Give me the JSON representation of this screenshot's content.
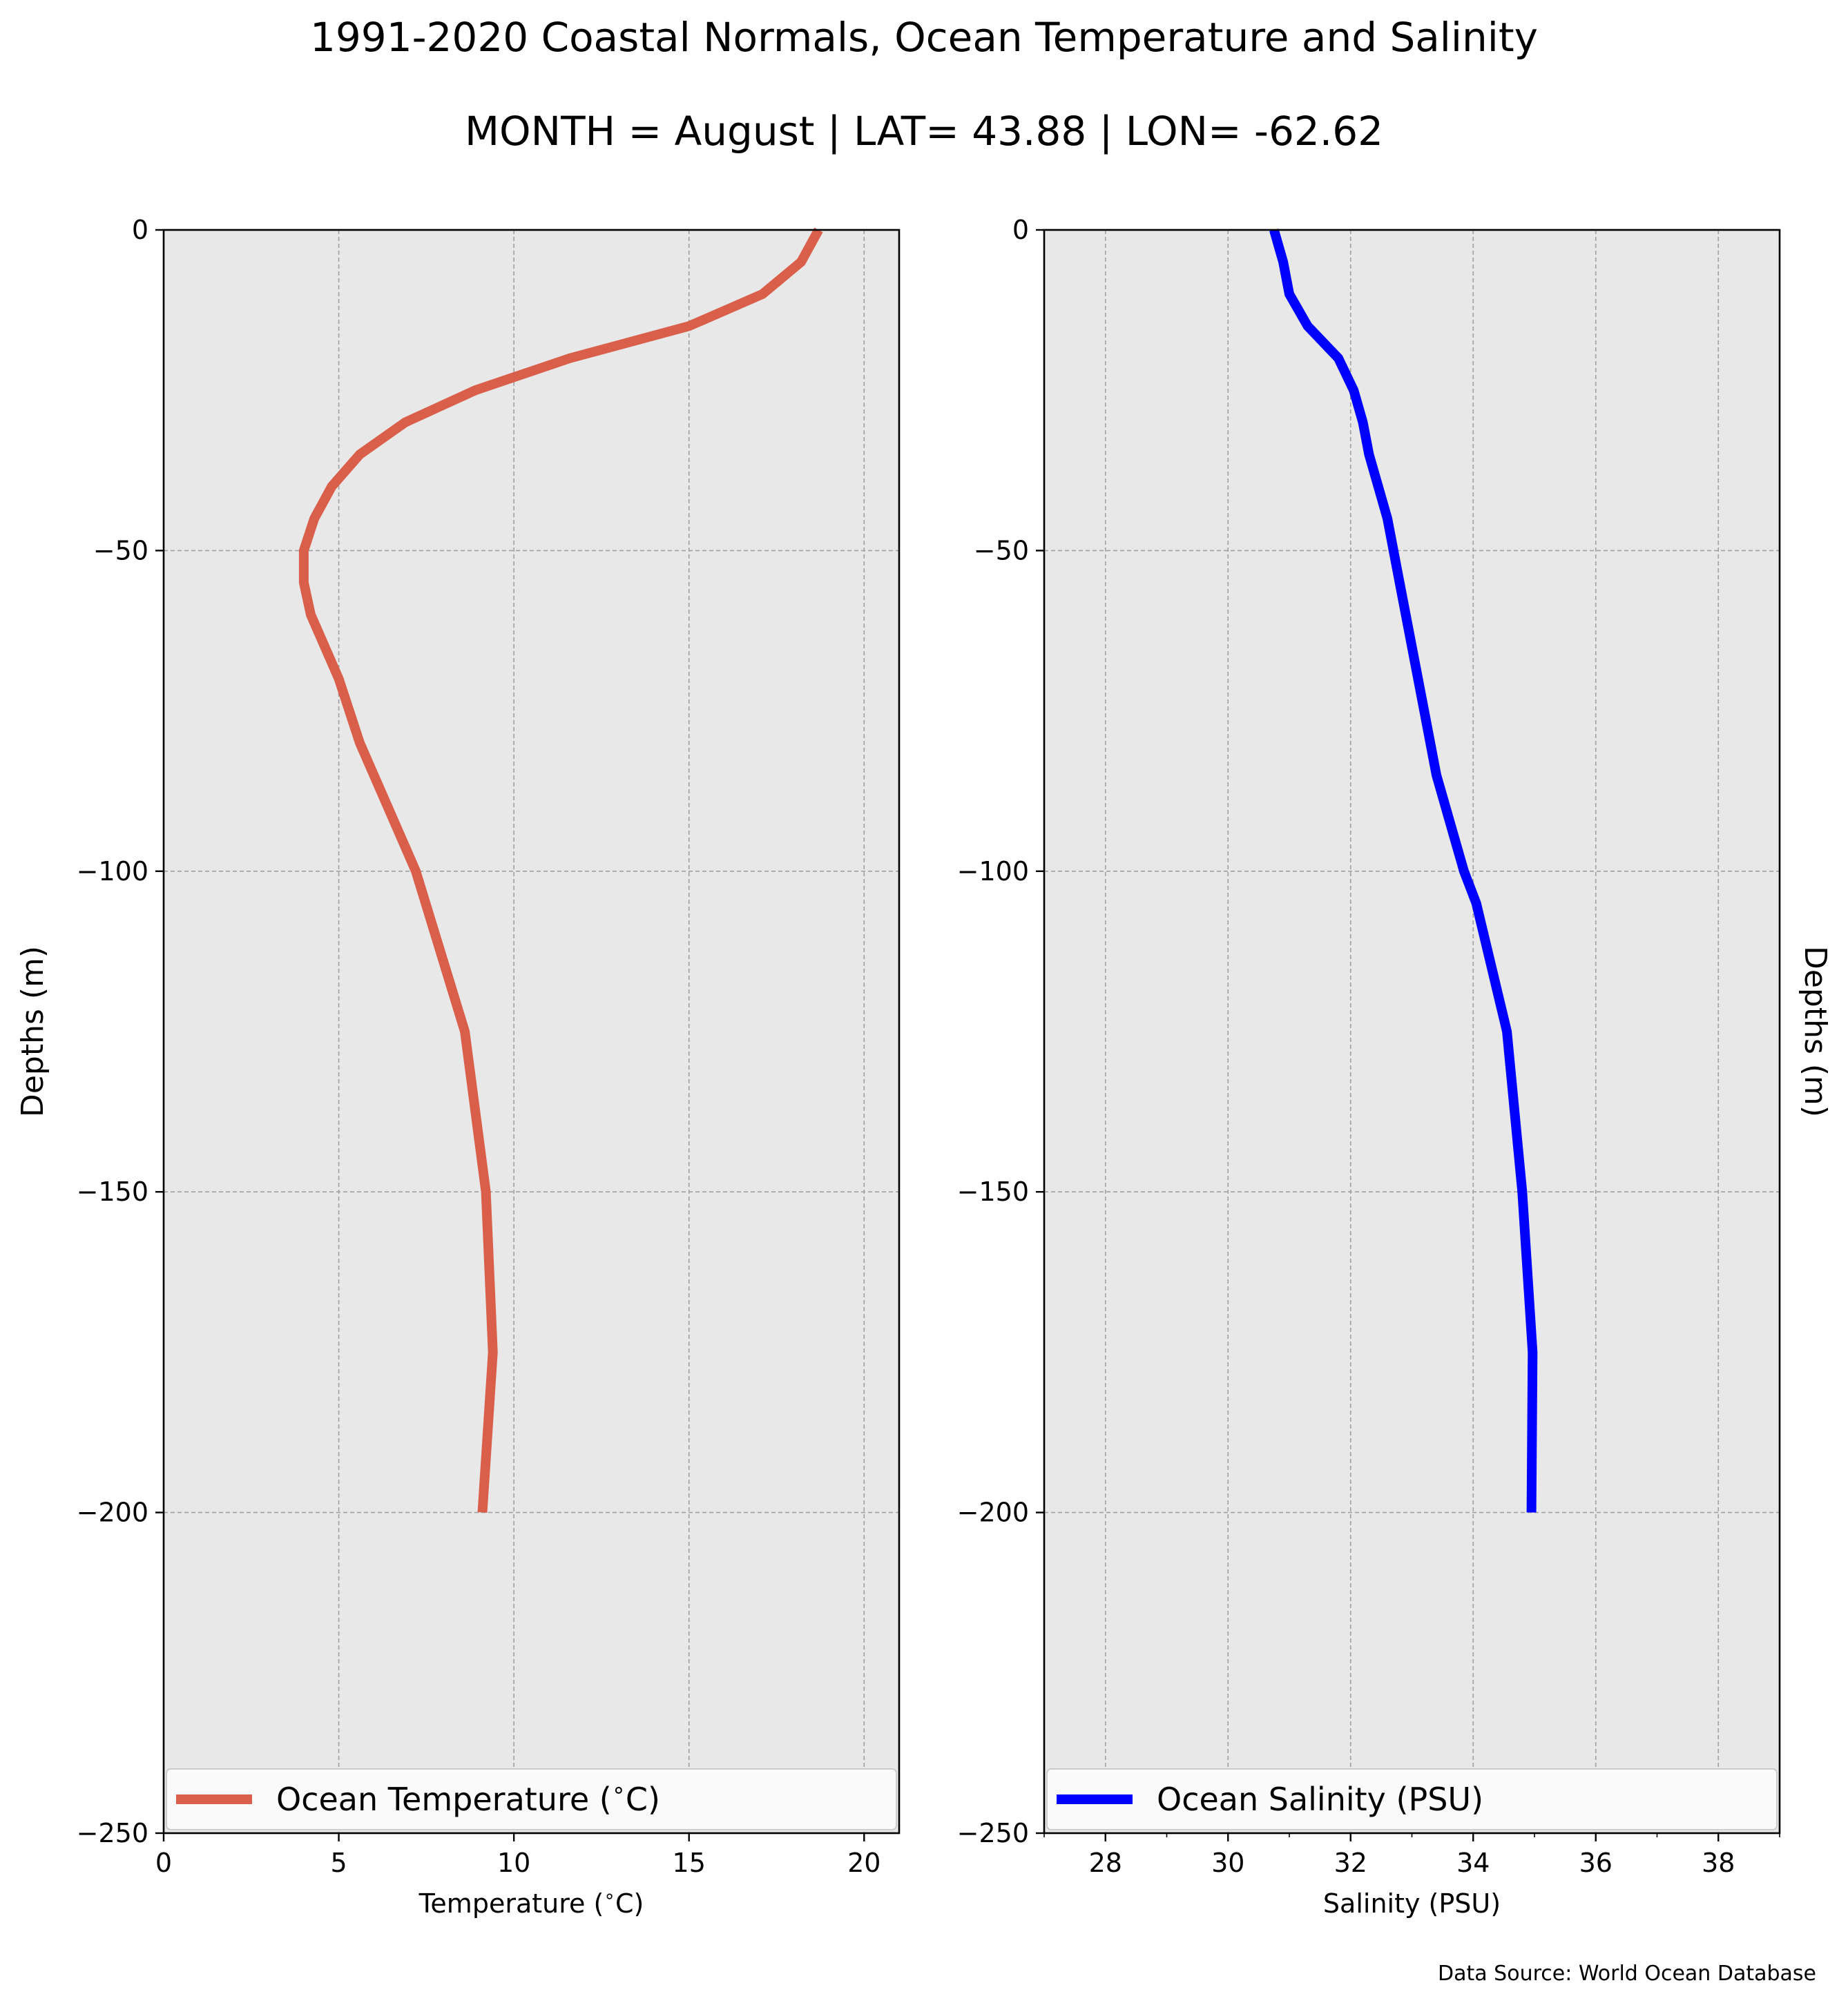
{
  "figure": {
    "title": "1991-2020 Coastal Normals, Ocean Temperature and Salinity",
    "subtitle": "MONTH = August | LAT= 43.88 | LON= -62.62",
    "source_note": "Data Source: World Ocean Database",
    "background": "#ffffff",
    "plot_background": "#e8e8e8"
  },
  "chart_data": [
    {
      "type": "line",
      "xlabel": "Temperature ($^\\circ$C)",
      "ylabel": "Depths (m)",
      "ylabel_side": "left",
      "xlim": [
        0,
        21
      ],
      "ylim": [
        -250,
        0
      ],
      "xticks": [
        0,
        5,
        10,
        15,
        20
      ],
      "xtick_labels": [
        "0",
        "5",
        "10",
        "15",
        "20"
      ],
      "yticks": [
        0,
        -50,
        -100,
        -150,
        -200,
        -250
      ],
      "ytick_labels": [
        "0",
        "−50",
        "−100",
        "−150",
        "−200",
        "−250"
      ],
      "grid": true,
      "legend": "bottom",
      "series": [
        {
          "name": "Ocean Temperature ($^\\circ$C)",
          "color": "#d95f4b",
          "x": [
            18.7,
            18.2,
            17.1,
            15.0,
            11.6,
            8.9,
            6.9,
            5.6,
            4.8,
            4.3,
            4.0,
            4.0,
            4.2,
            4.6,
            5.0,
            5.6,
            6.0,
            6.4,
            6.8,
            7.2,
            8.6,
            9.2,
            9.4,
            9.1
          ],
          "y": [
            0,
            -5,
            -10,
            -15,
            -20,
            -25,
            -30,
            -35,
            -40,
            -45,
            -50,
            -55,
            -60,
            -65,
            -70,
            -80,
            -85,
            -90,
            -95,
            -100,
            -125,
            -150,
            -175,
            -200
          ]
        }
      ]
    },
    {
      "type": "line",
      "xlabel": "Salinity (PSU)",
      "ylabel": "Depths (m)",
      "ylabel_side": "right",
      "xlim": [
        27,
        39
      ],
      "ylim": [
        -250,
        0
      ],
      "xticks": [
        28,
        30,
        32,
        34,
        36,
        38
      ],
      "xtick_labels": [
        "28",
        "30",
        "32",
        "34",
        "36",
        "38"
      ],
      "xminor_ticks": [
        27,
        29,
        31,
        33,
        35,
        37,
        39
      ],
      "yticks": [
        0,
        -50,
        -100,
        -150,
        -200,
        -250
      ],
      "ytick_labels": [
        "0",
        "−50",
        "−100",
        "−150",
        "−200",
        "−250"
      ],
      "grid": true,
      "legend": "bottom",
      "series": [
        {
          "name": "Ocean Salinity (PSU)",
          "color": "#0000ff",
          "x": [
            30.75,
            30.9,
            31.0,
            31.3,
            31.8,
            32.05,
            32.2,
            32.3,
            32.45,
            32.6,
            32.8,
            33.0,
            33.2,
            33.4,
            33.55,
            33.7,
            33.85,
            34.05,
            34.55,
            34.8,
            34.97,
            34.95
          ],
          "y": [
            0,
            -5,
            -10,
            -15,
            -20,
            -25,
            -30,
            -35,
            -40,
            -45,
            -55,
            -65,
            -75,
            -85,
            -90,
            -95,
            -100,
            -105,
            -125,
            -150,
            -175,
            -200
          ]
        }
      ]
    }
  ]
}
